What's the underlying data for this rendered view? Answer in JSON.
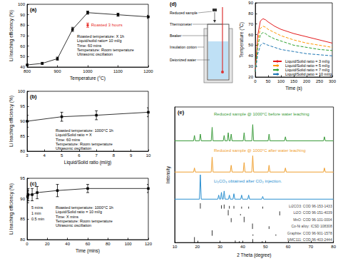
{
  "chart_data": [
    {
      "type": "line",
      "title": "(a)",
      "x_label": "Temperature (°C)",
      "y_label": "Li leaching efficiency (%)",
      "xlim": [
        800,
        1200
      ],
      "xticks": [
        800,
        900,
        1000,
        1100,
        1200
      ],
      "ylim": [
        40,
        100
      ],
      "yticks": [
        40,
        50,
        60,
        70,
        80,
        90,
        100
      ],
      "series": [
        {
          "color": "#000000",
          "marker": "square",
          "x": [
            800,
            850,
            900,
            950,
            1000,
            1100,
            1200
          ],
          "values": [
            42,
            43.5,
            48,
            76,
            92,
            90,
            88
          ],
          "errors": [
            1,
            1,
            1.5,
            2,
            1.5,
            1.5,
            1.5
          ]
        },
        {
          "name": "Roasted 3 hours",
          "color": "#e8302a",
          "marker": "circle",
          "x": [
            1000
          ],
          "values": [
            80
          ],
          "errors": [
            2
          ]
        }
      ],
      "annotations": [
        [
          "Roasted temperature: X 1h",
          "Liquid/solid ratio= 10 ml/g",
          "Time: 60 mins",
          "Temperature: Room temperature",
          "Ultrasonic oscillation"
        ]
      ]
    },
    {
      "type": "line",
      "title": "(b)",
      "x_label": "Liquid/Solid ratio (ml/g)",
      "y_label": "Li leaching efficiency (%)",
      "xlim": [
        3,
        10
      ],
      "xticks": [
        3,
        4,
        5,
        6,
        7,
        8,
        9,
        10
      ],
      "ylim": [
        80,
        100
      ],
      "yticks": [
        80,
        85,
        90,
        95,
        100
      ],
      "series": [
        {
          "color": "#000000",
          "marker": "square",
          "x": [
            3,
            5,
            7,
            10
          ],
          "values": [
            90,
            91.5,
            92,
            93
          ],
          "errors": [
            2,
            1.5,
            1.5,
            1.5
          ]
        }
      ],
      "annotations": [
        [
          "Roasted temperature: 1000°C 1h",
          "Liquid/Solid ratio = X",
          "Time: 60 mins",
          "Temperature: Room temperature",
          "Ultrasonic oscillation"
        ]
      ]
    },
    {
      "type": "line",
      "title": "(c)",
      "x_label": "Time (mins)",
      "y_label": "Li leaching efficiency (%)",
      "xlim": [
        0,
        120
      ],
      "xticks": [
        0,
        20,
        40,
        60,
        80,
        100,
        120
      ],
      "ylim": [
        80,
        95
      ],
      "yticks": [
        80,
        85,
        90,
        95
      ],
      "series": [
        {
          "color": "#000000",
          "marker": "square",
          "x": [
            0.5,
            1,
            5,
            10,
            30,
            60,
            120
          ],
          "values": [
            90.5,
            91,
            91,
            91.5,
            92,
            92.5,
            92.5
          ],
          "errors": [
            1.5,
            1.5,
            1.5,
            1.5,
            1.5,
            1,
            1
          ]
        }
      ],
      "annotations": [
        [
          "Roasted temperature: 1000°C 1h",
          "Liquid/Solid ratio = 10 ml/g",
          "Time: X mins",
          "Temperature: Room temperature",
          "Ultrasonic oscillation"
        ],
        "0.5 min",
        "1 min",
        "5 mins"
      ]
    },
    {
      "type": "line",
      "title": "(d)",
      "x_label": "Time (s)",
      "y_label": "Temperature (°C)",
      "xlim": [
        0,
        300
      ],
      "xticks": [
        0,
        50,
        100,
        150,
        200,
        250,
        300
      ],
      "ylim": [
        20,
        90
      ],
      "yticks": [
        20,
        30,
        40,
        50,
        60,
        70,
        80,
        90
      ],
      "legend": "lower right",
      "x": [
        0,
        10,
        20,
        30,
        40,
        50,
        75,
        100,
        150,
        200,
        250,
        300
      ],
      "series": [
        {
          "name": "Liquid/Solid ratio = 3 ml/g",
          "color": "#e41a1c",
          "line_style": "solid",
          "values": [
            25,
            60,
            73,
            75,
            74,
            72,
            68,
            65,
            61,
            58,
            55,
            52
          ]
        },
        {
          "name": "Liquid/Solid ratio = 5 ml/g",
          "color": "#ff9900",
          "line_style": "dashed",
          "values": [
            25,
            55,
            66,
            68,
            67,
            65,
            62,
            59,
            55,
            52,
            50,
            48
          ]
        },
        {
          "name": "Liquid/Solid ratio = 7 ml/g",
          "color": "#2ca02c",
          "line_style": "dashed",
          "values": [
            25,
            50,
            60,
            62,
            61,
            59,
            56,
            54,
            50,
            48,
            46,
            45
          ]
        },
        {
          "name": "Liquid/Solid ratio = 10 ml/g",
          "color": "#1f77b4",
          "line_style": "dashed",
          "values": [
            25,
            42,
            50,
            52,
            51,
            50,
            48,
            46,
            44,
            42,
            41,
            40
          ]
        }
      ]
    },
    {
      "type": "line",
      "title": "(e)",
      "x_label": "2 Theta (degree)",
      "y_label": "Intensity",
      "xlim": [
        10,
        80
      ],
      "xticks": [
        10,
        20,
        30,
        40,
        50,
        60,
        70,
        80
      ],
      "ylim": [
        0,
        100
      ],
      "tick_labels": "x",
      "series": [
        {
          "name": "Reduced sample @ 1000°C before water leaching",
          "color": "#3a9b3a",
          "x": [
            10,
            18.3,
            18.7,
            19.1,
            20.9,
            21.3,
            21.7,
            26.1,
            26.5,
            26.9,
            31.4,
            31.8,
            32.2,
            33.2,
            33.6,
            34.0,
            34.5,
            34.9,
            35.3,
            40.2,
            40.6,
            41.0,
            44.0,
            44.4,
            44.8,
            51.2,
            51.6,
            52.0,
            58.4,
            58.8,
            59.2,
            75.6,
            76.0,
            76.4,
            80
          ],
          "values": [
            75,
            75,
            79,
            75,
            75,
            80,
            75,
            75,
            85,
            75,
            75,
            79,
            75,
            75,
            81,
            75,
            75,
            80,
            75,
            75,
            81,
            75,
            75,
            87,
            75,
            75,
            80,
            75,
            75,
            78,
            75,
            75,
            78,
            75,
            75
          ]
        },
        {
          "name": "Reduced sample @ 1000°C after water leaching",
          "color": "#f0a030",
          "x": [
            10,
            18.3,
            18.7,
            19.1,
            26.1,
            26.5,
            26.9,
            34.5,
            34.9,
            35.3,
            40.2,
            40.6,
            41.0,
            44.0,
            44.4,
            44.8,
            51.2,
            51.6,
            52.0,
            58.4,
            58.8,
            59.2,
            75.6,
            76.0,
            76.4,
            80
          ],
          "values": [
            52,
            52,
            55,
            52,
            52,
            63,
            52,
            52,
            57,
            52,
            52,
            59,
            52,
            52,
            64,
            52,
            52,
            57,
            52,
            52,
            55,
            52,
            52,
            55,
            52,
            52
          ]
        },
        {
          "name": "Li₂CO₃ obtained after CO₂ injection.",
          "color": "#2a8fd0",
          "x": [
            10,
            20.9,
            21.3,
            21.7,
            29.0,
            29.4,
            29.8,
            30.2,
            30.6,
            31.0,
            31.4,
            31.8,
            32.2,
            33.7,
            34.1,
            34.5,
            35.7,
            36.1,
            36.5,
            39.1,
            39.5,
            39.9,
            42.2,
            42.6,
            43.0,
            48.4,
            48.8,
            49.2,
            80
          ],
          "values": [
            32,
            32,
            50,
            32,
            32,
            35,
            32,
            32,
            37,
            32,
            32,
            38,
            32,
            32,
            35,
            32,
            32,
            36,
            32,
            32,
            35,
            32,
            32,
            35,
            32,
            32,
            34,
            32,
            32
          ]
        }
      ],
      "references": [
        {
          "name": "Li2CO3: COD 96-153-1433",
          "color": "#000000",
          "baseline": 25,
          "positions": [
            21.3,
            30.6,
            31.8,
            34.1,
            36.1,
            39.5,
            42.6,
            48.8
          ],
          "values": [
            4,
            2.5,
            3,
            2,
            2,
            1.5,
            1.5,
            1.5
          ]
        },
        {
          "name": "Li2O: COD 96-151-4039",
          "color": "#000000",
          "baseline": 20,
          "positions": [
            33.6,
            39.0,
            56.3
          ],
          "values": [
            4,
            1,
            3
          ]
        },
        {
          "name": "MnO: COD 96-101-0004",
          "color": "#000000",
          "baseline": 15,
          "positions": [
            34.9,
            40.6
          ],
          "values": [
            3,
            4
          ]
        },
        {
          "name": "Co-Ni alloy: ICSD 108308",
          "color": "#000000",
          "baseline": 10,
          "positions": [
            44.3,
            51.6
          ],
          "values": [
            4,
            2
          ]
        },
        {
          "name": "Graphite: COD 96-901-1578",
          "color": "#000000",
          "baseline": 5,
          "positions": [
            26.5,
            44.5,
            54.6
          ],
          "values": [
            4,
            1,
            1
          ]
        },
        {
          "name": "NMC111: COD 96-403-2444",
          "color": "#000000",
          "baseline": 0,
          "positions": [
            18.7,
            36.7,
            38.5,
            44.4,
            48.6
          ],
          "values": [
            4,
            1.5,
            1,
            2.5,
            1
          ]
        }
      ]
    }
  ],
  "diagram": {
    "labels": [
      "Reduced sample",
      "Thermometer",
      "Beaker",
      "Insulation cotton",
      "Deionized water"
    ]
  }
}
